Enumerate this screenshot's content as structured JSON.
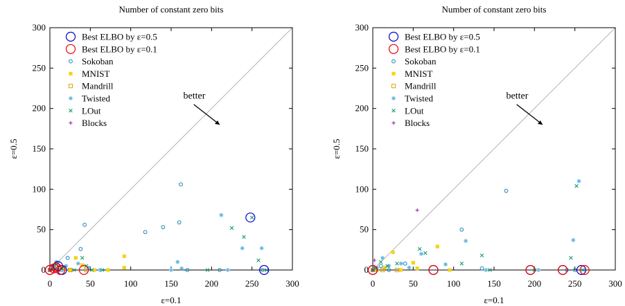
{
  "chart_data": [
    {
      "type": "scatter",
      "title": "Number of constant zero bits",
      "xlabel": "ε=0.1",
      "ylabel": "ε=0.5",
      "xlim": [
        0,
        300
      ],
      "ylim": [
        0,
        300
      ],
      "xticks": [
        0,
        50,
        100,
        150,
        200,
        250,
        300
      ],
      "yticks": [
        0,
        50,
        100,
        150,
        200,
        250,
        300
      ],
      "grid": false,
      "diagonal": true,
      "legend_position": "top-left",
      "annotation": "better",
      "highlights": [
        {
          "name": "Best ELBO by ε=0.5",
          "color": "#0000cc",
          "points": [
            [
              0,
              0
            ],
            [
              10,
              5
            ],
            [
              15,
              0
            ],
            [
              248,
              65
            ],
            [
              265,
              0
            ]
          ]
        },
        {
          "name": "Best ELBO by ε=0.1",
          "color": "#ee0000",
          "points": [
            [
              0,
              0
            ],
            [
              5,
              2
            ],
            [
              13,
              0
            ],
            [
              42,
              0
            ],
            [
              8,
              3
            ]
          ]
        }
      ],
      "series": [
        {
          "name": "Sokoban",
          "marker": "circle",
          "color": "#1a82b8",
          "points": [
            [
              0,
              0
            ],
            [
              2,
              3
            ],
            [
              5,
              4
            ],
            [
              8,
              8
            ],
            [
              15,
              0
            ],
            [
              22,
              15
            ],
            [
              38,
              26
            ],
            [
              43,
              56
            ],
            [
              118,
              47
            ],
            [
              140,
              53
            ],
            [
              160,
              59
            ],
            [
              162,
              106
            ],
            [
              170,
              0
            ],
            [
              210,
              0
            ],
            [
              263,
              0
            ]
          ]
        },
        {
          "name": "MNIST",
          "marker": "square",
          "color": "#f2d41c",
          "points": [
            [
              0,
              0
            ],
            [
              6,
              0
            ],
            [
              12,
              3
            ],
            [
              18,
              2
            ],
            [
              25,
              0
            ],
            [
              32,
              15
            ],
            [
              40,
              6
            ],
            [
              55,
              0
            ],
            [
              72,
              0
            ],
            [
              92,
              17
            ],
            [
              92,
              3
            ]
          ]
        },
        {
          "name": "Mandrill",
          "marker": "open-square",
          "color": "#e0a000",
          "points": [
            [
              0,
              0
            ],
            [
              5,
              2
            ],
            [
              10,
              0
            ],
            [
              25,
              0
            ],
            [
              45,
              0
            ]
          ]
        },
        {
          "name": "Twisted",
          "marker": "star",
          "color": "#5ab4e0",
          "points": [
            [
              0,
              0
            ],
            [
              3,
              5
            ],
            [
              8,
              10
            ],
            [
              12,
              0
            ],
            [
              20,
              5
            ],
            [
              35,
              8
            ],
            [
              48,
              3
            ],
            [
              62,
              0
            ],
            [
              150,
              0
            ],
            [
              158,
              10
            ],
            [
              163,
              2
            ],
            [
              212,
              68
            ],
            [
              238,
              27
            ],
            [
              262,
              27
            ],
            [
              220,
              0
            ]
          ]
        },
        {
          "name": "LOut",
          "marker": "x",
          "color": "#1a9b6e",
          "points": [
            [
              0,
              0
            ],
            [
              5,
              3
            ],
            [
              10,
              8
            ],
            [
              15,
              2
            ],
            [
              30,
              0
            ],
            [
              40,
              15
            ],
            [
              45,
              5
            ],
            [
              52,
              0
            ],
            [
              65,
              0
            ],
            [
              195,
              0
            ],
            [
              225,
              52
            ],
            [
              240,
              41
            ],
            [
              250,
              65
            ],
            [
              258,
              12
            ],
            [
              268,
              0
            ]
          ]
        },
        {
          "name": "Blocks",
          "marker": "plus",
          "color": "#8b1a9b",
          "points": [
            [
              0,
              0
            ],
            [
              2,
              1
            ],
            [
              4,
              0
            ]
          ]
        }
      ]
    },
    {
      "type": "scatter",
      "title": "Number of constant zero bits",
      "xlabel": "ε=0.1",
      "ylabel": "ε=0.5",
      "xlim": [
        0,
        300
      ],
      "ylim": [
        0,
        300
      ],
      "xticks": [
        0,
        50,
        100,
        150,
        200,
        250,
        300
      ],
      "yticks": [
        0,
        50,
        100,
        150,
        200,
        250,
        300
      ],
      "grid": false,
      "diagonal": true,
      "legend_position": "top-left",
      "annotation": "better",
      "highlights": [
        {
          "name": "Best ELBO by ε=0.5",
          "color": "#0000cc",
          "points": [
            [
              0,
              0
            ],
            [
              75,
              0
            ],
            [
              195,
              0
            ],
            [
              235,
              0
            ],
            [
              258,
              0
            ]
          ]
        },
        {
          "name": "Best ELBO by ε=0.1",
          "color": "#ee0000",
          "points": [
            [
              0,
              0
            ],
            [
              75,
              0
            ],
            [
              195,
              0
            ],
            [
              235,
              0
            ],
            [
              262,
              0
            ]
          ]
        }
      ],
      "series": [
        {
          "name": "Sokoban",
          "marker": "circle",
          "color": "#1a82b8",
          "points": [
            [
              0,
              0
            ],
            [
              3,
              2
            ],
            [
              10,
              5
            ],
            [
              20,
              0
            ],
            [
              40,
              8
            ],
            [
              110,
              50
            ],
            [
              135,
              2
            ],
            [
              165,
              98
            ],
            [
              240,
              0
            ],
            [
              250,
              0
            ]
          ]
        },
        {
          "name": "MNIST",
          "marker": "square",
          "color": "#f2d41c",
          "points": [
            [
              0,
              0
            ],
            [
              5,
              0
            ],
            [
              15,
              3
            ],
            [
              25,
              22
            ],
            [
              35,
              0
            ],
            [
              50,
              9
            ],
            [
              55,
              2
            ],
            [
              80,
              29
            ],
            [
              95,
              0
            ]
          ]
        },
        {
          "name": "Mandrill",
          "marker": "open-square",
          "color": "#e0a000",
          "points": [
            [
              0,
              0
            ],
            [
              4,
              1
            ],
            [
              12,
              0
            ],
            [
              30,
              0
            ]
          ]
        },
        {
          "name": "Twisted",
          "marker": "star",
          "color": "#5ab4e0",
          "points": [
            [
              0,
              0
            ],
            [
              5,
              3
            ],
            [
              12,
              15
            ],
            [
              20,
              5
            ],
            [
              35,
              8
            ],
            [
              45,
              3
            ],
            [
              60,
              20
            ],
            [
              90,
              7
            ],
            [
              115,
              36
            ],
            [
              140,
              0
            ],
            [
              205,
              0
            ],
            [
              248,
              37
            ],
            [
              255,
              110
            ]
          ]
        },
        {
          "name": "LOut",
          "marker": "x",
          "color": "#1a9b6e",
          "points": [
            [
              0,
              0
            ],
            [
              3,
              2
            ],
            [
              10,
              10
            ],
            [
              18,
              5
            ],
            [
              30,
              8
            ],
            [
              58,
              26
            ],
            [
              65,
              21
            ],
            [
              110,
              8
            ],
            [
              135,
              18
            ],
            [
              145,
              0
            ],
            [
              200,
              0
            ],
            [
              245,
              15
            ],
            [
              252,
              104
            ],
            [
              260,
              0
            ]
          ]
        },
        {
          "name": "Blocks",
          "marker": "plus",
          "color": "#8b1a9b",
          "points": [
            [
              0,
              0
            ],
            [
              2,
              12
            ],
            [
              55,
              74
            ]
          ]
        }
      ]
    }
  ]
}
